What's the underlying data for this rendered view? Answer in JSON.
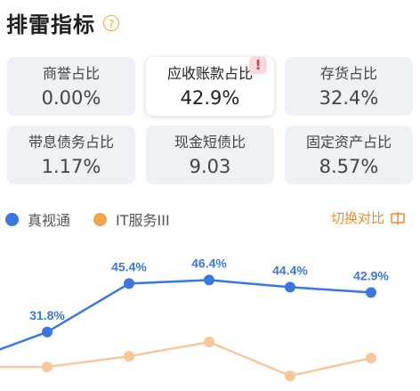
{
  "header": {
    "title": "排雷指标",
    "help_icon": "question-circle-icon"
  },
  "cards": [
    {
      "label": "商誉占比",
      "value": "0.00%"
    },
    {
      "label": "应收账款占比",
      "value": "42.9%",
      "alert_icon": "exclamation-icon"
    },
    {
      "label": "存货占比",
      "value": "32.4%"
    },
    {
      "label": "带息债务占比",
      "value": "1.17%"
    },
    {
      "label": "现金短债比",
      "value": "9.03"
    },
    {
      "label": "固定资产占比",
      "value": "8.57%"
    }
  ],
  "legend": [
    {
      "name": "真视通",
      "color": "#3a78e0"
    },
    {
      "name": "IT服务III",
      "color": "#f2a349"
    }
  ],
  "switch": {
    "label": "切换对比",
    "icon": "swap-icon"
  },
  "chart_data": {
    "type": "line",
    "series": [
      {
        "name": "真视通",
        "color": "#3a78e0",
        "values": [
          null,
          31.8,
          45.4,
          46.4,
          44.4,
          42.9
        ],
        "labels": [
          "",
          "31.8%",
          "45.4%",
          "46.4%",
          "44.4%",
          "42.9%"
        ]
      },
      {
        "name": "IT服务III",
        "color": "#f7c99a",
        "values": [
          null,
          null,
          null,
          null,
          null,
          null
        ]
      }
    ]
  }
}
